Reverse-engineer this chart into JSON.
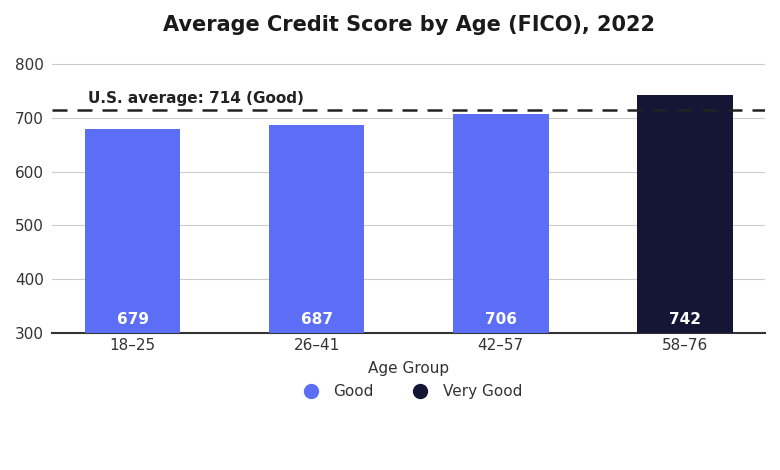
{
  "title": "Average Credit Score by Age (FICO), 2022",
  "categories": [
    "18–25",
    "26–41",
    "42–57",
    "58–76"
  ],
  "values": [
    679,
    687,
    706,
    742
  ],
  "bar_colors": [
    "#5b6ef5",
    "#5b6ef5",
    "#5b6ef5",
    "#151535"
  ],
  "value_labels": [
    "679",
    "687",
    "706",
    "742"
  ],
  "xlabel": "Age Group",
  "ylim": [
    300,
    830
  ],
  "yticks": [
    300,
    400,
    500,
    600,
    700,
    800
  ],
  "avg_line_y": 714,
  "avg_line_label": "U.S. average: 714 (Good)",
  "legend_items": [
    {
      "label": "Good",
      "color": "#5b6ef5"
    },
    {
      "label": "Very Good",
      "color": "#151535"
    }
  ],
  "background_color": "#ffffff",
  "grid_color": "#cccccc",
  "title_fontsize": 15,
  "label_fontsize": 11,
  "tick_fontsize": 11,
  "bar_value_fontsize": 11
}
